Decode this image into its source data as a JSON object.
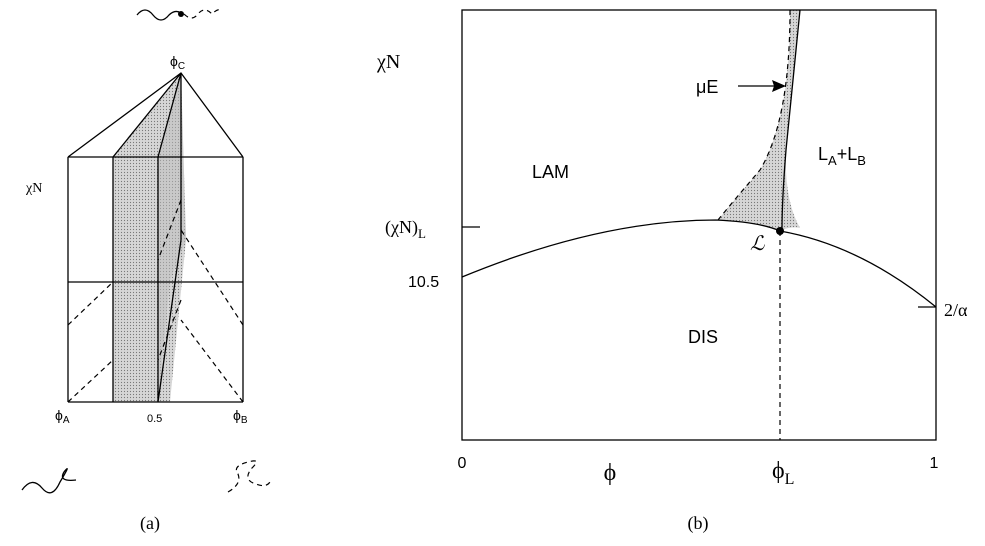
{
  "panel_a": {
    "apex_label": {
      "symbol": "ϕ",
      "sub": "C"
    },
    "y_label": "χN",
    "left_label": {
      "symbol": "ϕ",
      "sub": "A"
    },
    "mid_label": "0.5",
    "right_label": {
      "symbol": "ϕ",
      "sub": "B"
    },
    "caption": "(a)"
  },
  "panel_b": {
    "y_label": "χN",
    "arrow_label": "μE",
    "region_lam": "LAM",
    "region_coexist": {
      "l1": "L",
      "s1": "A",
      "plus": "+",
      "l2": "L",
      "s2": "B"
    },
    "tick_lifshitz": {
      "main": "(χN)",
      "sub": "L"
    },
    "tick_left": "10.5",
    "point_label": "ℒ",
    "region_dis": "DIS",
    "tick_right": "2/α",
    "x_start": "0",
    "x_label": "ϕ",
    "x_lifshitz": {
      "symbol": "ϕ",
      "sub": "L"
    },
    "x_end": "1",
    "caption": "(b)"
  }
}
